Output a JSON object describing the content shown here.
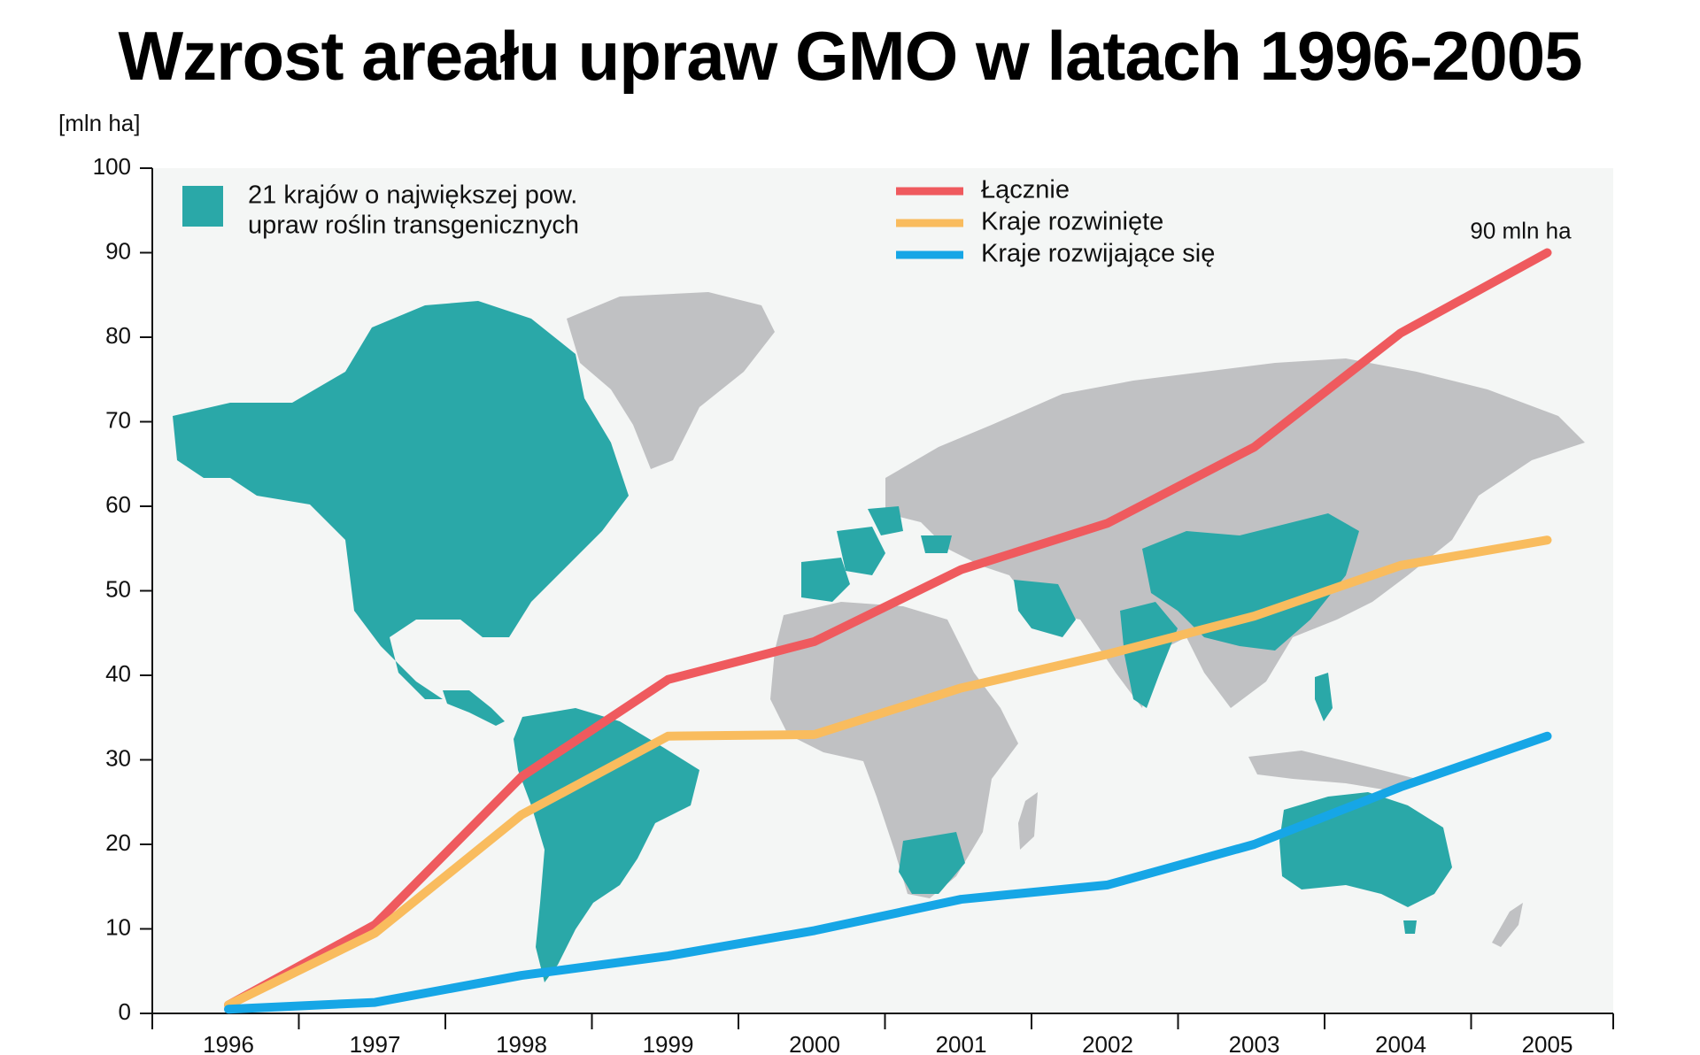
{
  "title": "Wzrost areału upraw GMO w latach 1996-2005",
  "chart_data": {
    "type": "line",
    "title": "Wzrost areału upraw GMO w latach 1996-2005",
    "ylabel": "[mln ha]",
    "xlabel": "",
    "x": [
      "1996",
      "1997",
      "1998",
      "1999",
      "2000",
      "2001",
      "2002",
      "2003",
      "2004",
      "2005"
    ],
    "ylim": [
      0,
      100
    ],
    "yticks": [
      0,
      10,
      20,
      30,
      40,
      50,
      60,
      70,
      80,
      90,
      100
    ],
    "grid": false,
    "legend_position": "top",
    "series": [
      {
        "name": "Łącznie",
        "color": "#ef5a5e",
        "values": [
          1,
          10.5,
          28,
          39.5,
          44,
          52.5,
          58,
          67,
          80.5,
          90
        ]
      },
      {
        "name": "Kraje rozwinięte",
        "color": "#f9bc5e",
        "values": [
          1,
          9.5,
          23.5,
          32.8,
          33,
          38.5,
          42.5,
          47,
          53,
          56
        ]
      },
      {
        "name": "Kraje rozwijające się",
        "color": "#16a6e6",
        "values": [
          0.5,
          1.3,
          4.5,
          6.8,
          9.8,
          13.5,
          15.2,
          20,
          26.8,
          32.8
        ]
      }
    ],
    "annotations": [
      {
        "text": "90 mln ha",
        "series": "Łącznie",
        "x": "2005",
        "y": 90
      }
    ],
    "background_map": {
      "legend_label_line1": "21 krajów o największej pow.",
      "legend_label_line2": "upraw roślin transgenicznych",
      "highlight_color": "#2aa8a8",
      "base_color": "#c0c1c3"
    }
  }
}
